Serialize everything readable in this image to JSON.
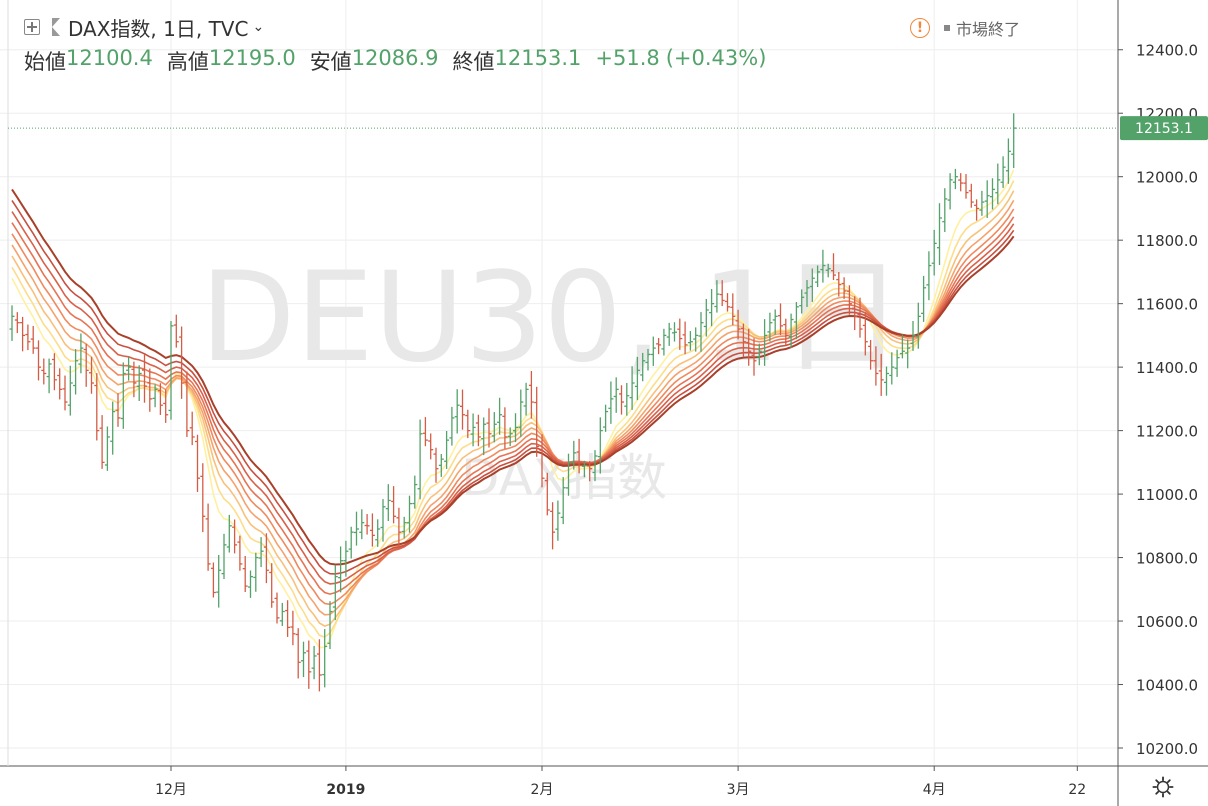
{
  "header": {
    "symbol_title": "DAX指数, 1日, TVC",
    "ohlc": [
      {
        "label": "始値",
        "value": "12100.4"
      },
      {
        "label": "高値",
        "value": "12195.0"
      },
      {
        "label": "安値",
        "value": "12086.9"
      },
      {
        "label": "終値",
        "value": "12153.1"
      }
    ],
    "change": "+51.8",
    "change_pct": "(+0.43%)",
    "market_status": "市場終了"
  },
  "watermark": {
    "main": "DEU30, 1日",
    "sub": "DAX指数"
  },
  "icons": {
    "add": "plus-box-icon",
    "flag": "flag-icon",
    "dropdown": "chevron-down-icon",
    "warning": "warning-icon",
    "settings": "gear-icon"
  },
  "colors": {
    "up": "#53a26a",
    "down": "#d45c45",
    "last_price_bg": "#53a26a",
    "ribbon_fast": "#fff2a0",
    "ribbon_slow": "#a8402a"
  },
  "chart_data": {
    "type": "ohlc",
    "title": "DAX指数, 1日, TVC",
    "last_price": 12153.1,
    "price_label": "12153.1",
    "y_ticks": [
      12400,
      12200,
      12000,
      11800,
      11600,
      11400,
      11200,
      11000,
      10800,
      10600,
      10400,
      10200
    ],
    "y_tick_labels": [
      "12400.0",
      "12200.0",
      "12000.0",
      "11800.0",
      "11600.0",
      "11400.0",
      "11200.0",
      "11000.0",
      "10800.0",
      "10600.0",
      "10400.0",
      "10200.0"
    ],
    "ylim": [
      10150,
      12550
    ],
    "x_ticks": [
      {
        "label": "12月",
        "bar": 30,
        "bold": false
      },
      {
        "label": "2019",
        "bar": 63,
        "bold": true
      },
      {
        "label": "2月",
        "bar": 100,
        "bold": false
      },
      {
        "label": "3月",
        "bar": 137,
        "bold": false
      },
      {
        "label": "4月",
        "bar": 174,
        "bold": false
      },
      {
        "label": "22",
        "bar": 201,
        "bold": false
      }
    ],
    "grid": true,
    "closes": [
      11560,
      11540,
      11500,
      11480,
      11460,
      11400,
      11380,
      11410,
      11360,
      11330,
      11290,
      11350,
      11420,
      11460,
      11390,
      11350,
      11200,
      11100,
      11180,
      11260,
      11240,
      11380,
      11400,
      11350,
      11380,
      11340,
      11300,
      11330,
      11280,
      11250,
      11530,
      11480,
      11350,
      11200,
      11180,
      11050,
      10930,
      10780,
      10690,
      10760,
      10840,
      10900,
      10840,
      10780,
      10710,
      10740,
      10800,
      10820,
      10760,
      10660,
      10610,
      10630,
      10580,
      10560,
      10470,
      10500,
      10440,
      10490,
      10430,
      10520,
      10630,
      10740,
      10790,
      10820,
      10880,
      10890,
      10910,
      10900,
      10870,
      10890,
      10960,
      10980,
      10930,
      10880,
      10910,
      10970,
      11030,
      11190,
      11170,
      11140,
      11080,
      11110,
      11170,
      11240,
      11280,
      11250,
      11200,
      11210,
      11180,
      11220,
      11190,
      11220,
      11250,
      11180,
      11190,
      11210,
      11290,
      11330,
      11290,
      11150,
      11050,
      10950,
      10880,
      10940,
      11020,
      11100,
      11130,
      11100,
      11090,
      11080,
      11120,
      11200,
      11260,
      11300,
      11330,
      11290,
      11310,
      11350,
      11390,
      11420,
      11440,
      11460,
      11470,
      11500,
      11520,
      11510,
      11490,
      11470,
      11480,
      11500,
      11540,
      11580,
      11600,
      11630,
      11610,
      11590,
      11560,
      11520,
      11480,
      11450,
      11420,
      11450,
      11500,
      11540,
      11560,
      11530,
      11500,
      11550,
      11590,
      11620,
      11650,
      11680,
      11700,
      11720,
      11710,
      11690,
      11660,
      11640,
      11600,
      11560,
      11520,
      11480,
      11420,
      11380,
      11360,
      11380,
      11400,
      11430,
      11450,
      11460,
      11500,
      11560,
      11650,
      11720,
      11790,
      11870,
      11930,
      11990,
      12000,
      11980,
      11950,
      11920,
      11900,
      11920,
      11940,
      11960,
      11990,
      12030,
      12080,
      12153.1
    ]
  }
}
